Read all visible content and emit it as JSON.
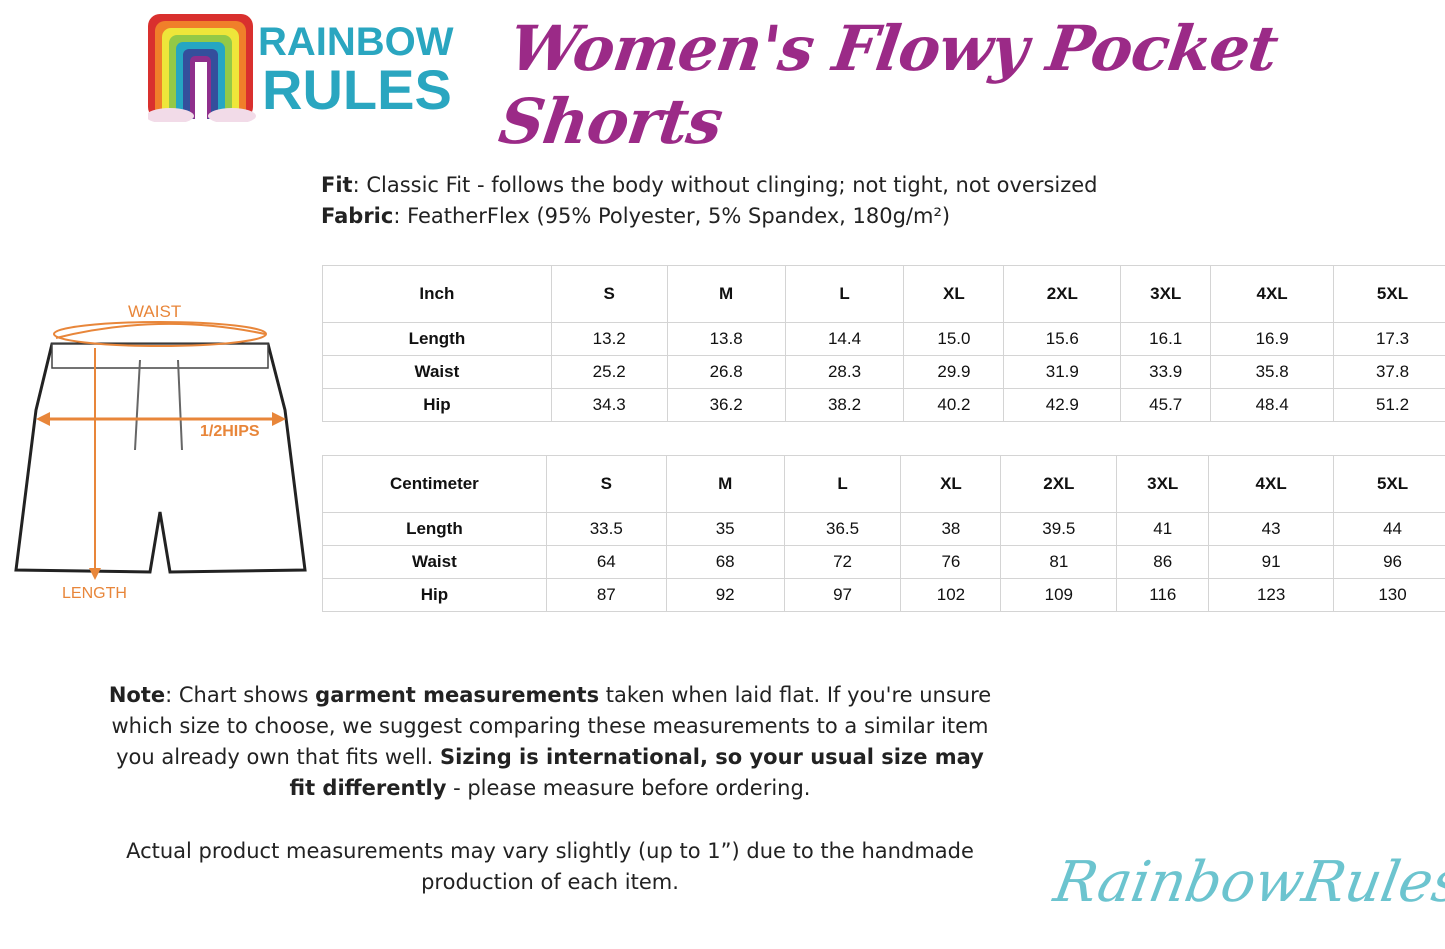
{
  "brand": {
    "logo_line1": "RAINBOW",
    "logo_line2": "RULES",
    "website": "RainbowRules.com",
    "accent_color": "#9b2a87",
    "logo_color": "#2aa6c0"
  },
  "title": "Women's Flowy Pocket Shorts",
  "specs": {
    "fit_label": "Fit",
    "fit_value": ": Classic Fit - follows the body without clinging; not tight, not oversized",
    "fabric_label": "Fabric",
    "fabric_value": ": FeatherFlex (95% Polyester, 5% Spandex, 180g/m²)"
  },
  "diagram": {
    "waist_label": "WAIST",
    "hips_label": "1/2HIPS",
    "length_label": "LENGTH",
    "arrow_color": "#e8863a"
  },
  "inch_table": {
    "header": [
      "Inch",
      "S",
      "M",
      "L",
      "XL",
      "2XL",
      "3XL",
      "4XL",
      "5XL"
    ],
    "rows": [
      [
        "Length",
        "13.2",
        "13.8",
        "14.4",
        "15.0",
        "15.6",
        "16.1",
        "16.9",
        "17.3"
      ],
      [
        "Waist",
        "25.2",
        "26.8",
        "28.3",
        "29.9",
        "31.9",
        "33.9",
        "35.8",
        "37.8"
      ],
      [
        "Hip",
        "34.3",
        "36.2",
        "38.2",
        "40.2",
        "42.9",
        "45.7",
        "48.4",
        "51.2"
      ]
    ]
  },
  "cm_table": {
    "header": [
      "Centimeter",
      "S",
      "M",
      "L",
      "XL",
      "2XL",
      "3XL",
      "4XL",
      "5XL"
    ],
    "rows": [
      [
        "Length",
        "33.5",
        "35",
        "36.5",
        "38",
        "39.5",
        "41",
        "43",
        "44"
      ],
      [
        "Waist",
        "64",
        "68",
        "72",
        "76",
        "81",
        "86",
        "91",
        "96"
      ],
      [
        "Hip",
        "87",
        "92",
        "97",
        "102",
        "109",
        "116",
        "123",
        "130"
      ]
    ]
  },
  "note": {
    "label": "Note",
    "t1": ": Chart shows ",
    "b1": "garment measurements",
    "t2": " taken when laid flat. If you're unsure which size to choose, we suggest comparing these measurements to a similar item you already own that fits well. ",
    "b2": "Sizing is international, so your usual size may fit differently",
    "t3": " - please measure before ordering.",
    "disclaimer": "Actual product measurements may vary slightly (up to 1”) due to the handmade production of each item."
  }
}
